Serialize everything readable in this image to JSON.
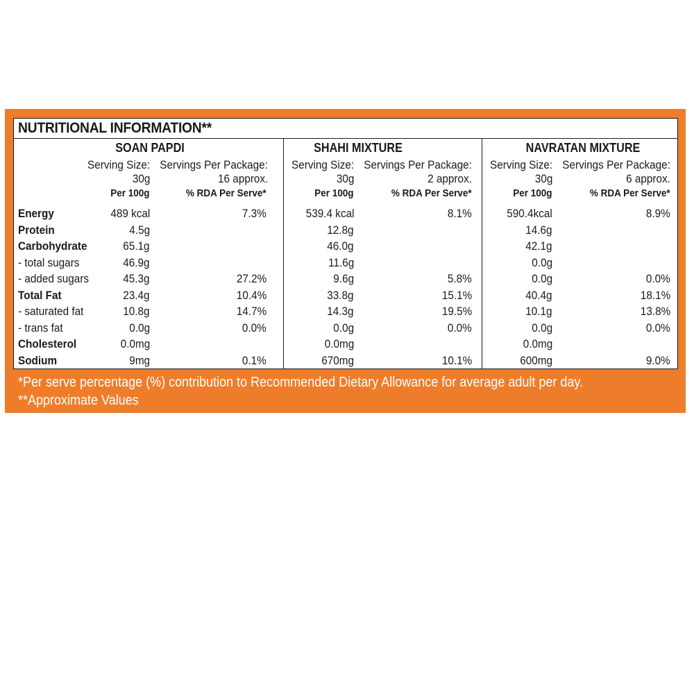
{
  "panel": {
    "color": "#ee7d2b"
  },
  "title": "NUTRITIONAL INFORMATION**",
  "products": [
    {
      "name": "SOAN PAPDI",
      "serving_size_label": "Serving Size:",
      "serving_size_value": "30g",
      "servings_label": "Servings Per Package:",
      "servings_value": "16 approx.",
      "per100_header": "Per 100g",
      "rda_header": "% RDA Per Serve*",
      "per100": [
        "489 kcal",
        "4.5g",
        "65.1g",
        "46.9g",
        "45.3g",
        "23.4g",
        "10.8g",
        "0.0g",
        "0.0mg",
        "9mg"
      ],
      "rda": [
        "7.3%",
        "",
        "",
        "",
        "27.2%",
        "10.4%",
        "14.7%",
        "0.0%",
        "",
        "0.1%"
      ]
    },
    {
      "name": "SHAHI MIXTURE",
      "serving_size_label": "Serving Size:",
      "serving_size_value": "30g",
      "servings_label": "Servings Per Package:",
      "servings_value": "2 approx.",
      "per100_header": "Per 100g",
      "rda_header": "% RDA Per Serve*",
      "per100": [
        "539.4 kcal",
        "12.8g",
        "46.0g",
        "11.6g",
        "9.6g",
        "33.8g",
        "14.3g",
        "0.0g",
        "0.0mg",
        "670mg"
      ],
      "rda": [
        "8.1%",
        "",
        "",
        "",
        "5.8%",
        "15.1%",
        "19.5%",
        "0.0%",
        "",
        "10.1%"
      ]
    },
    {
      "name": "NAVRATAN MIXTURE",
      "serving_size_label": "Serving Size:",
      "serving_size_value": "30g",
      "servings_label": "Servings Per Package:",
      "servings_value": "6 approx.",
      "per100_header": "Per 100g",
      "rda_header": "% RDA Per Serve*",
      "per100": [
        "590.4kcal",
        "14.6g",
        "42.1g",
        "0.0g",
        "0.0g",
        "40.4g",
        "10.1g",
        "0.0g",
        "0.0mg",
        "600mg"
      ],
      "rda": [
        "8.9%",
        "",
        "",
        "",
        "0.0%",
        "18.1%",
        "13.8%",
        "0.0%",
        "",
        "9.0%"
      ]
    }
  ],
  "nutrients": [
    {
      "label": "Energy",
      "bold": true
    },
    {
      "label": "Protein",
      "bold": true
    },
    {
      "label": "Carbohydrate",
      "bold": true
    },
    {
      "label": " - total sugars",
      "bold": false
    },
    {
      "label": " - added sugars",
      "bold": false
    },
    {
      "label": "Total Fat",
      "bold": true
    },
    {
      "label": " - saturated fat",
      "bold": false
    },
    {
      "label": " - trans fat",
      "bold": false
    },
    {
      "label": "Cholesterol",
      "bold": true
    },
    {
      "label": "Sodium",
      "bold": true
    }
  ],
  "footnotes": [
    "*Per serve percentage (%) contribution to Recommended Dietary Allowance for average adult per day.",
    "**Approximate Values"
  ]
}
